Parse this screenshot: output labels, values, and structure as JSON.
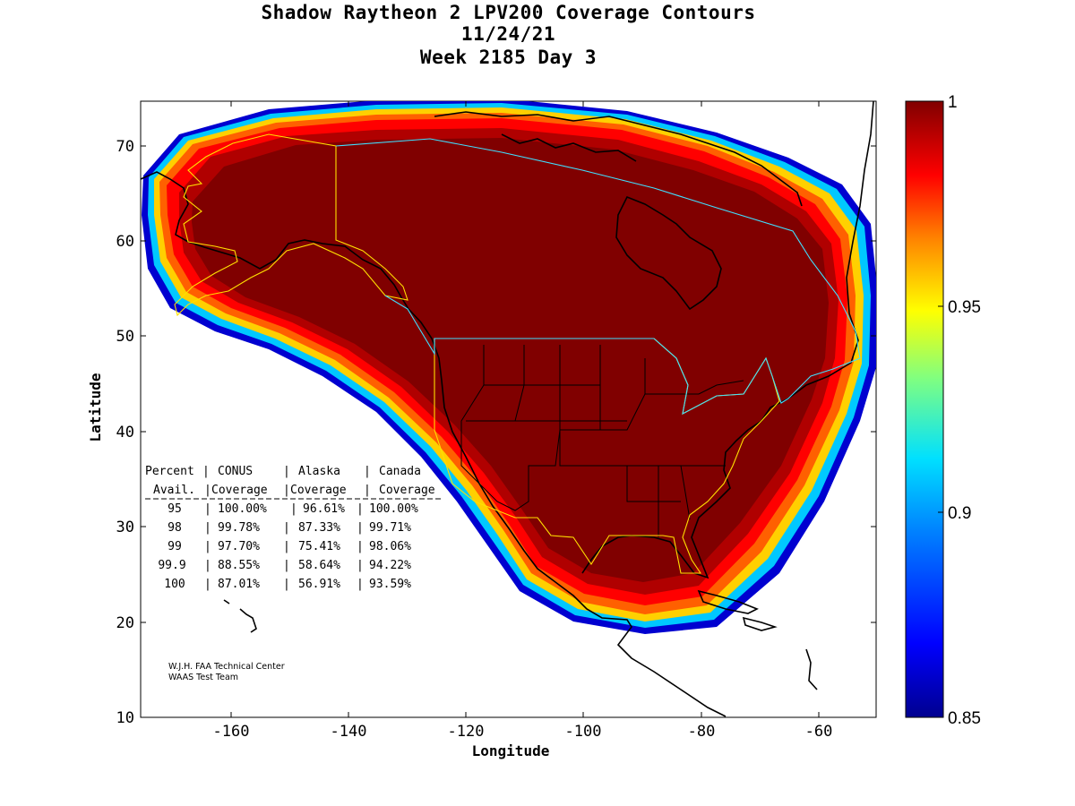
{
  "title_lines": [
    "Shadow Raytheon 2 LPV200 Coverage Contours",
    "11/24/21",
    "Week 2185 Day 3"
  ],
  "axes": {
    "xlabel": "Longitude",
    "ylabel": "Latitude",
    "xlim": [
      -175,
      -50
    ],
    "ylim": [
      10,
      75
    ],
    "xticks": [
      -160,
      -140,
      -120,
      -100,
      -80,
      -60
    ],
    "yticks": [
      10,
      20,
      30,
      40,
      50,
      60,
      70
    ]
  },
  "colorbar": {
    "range": [
      0.85,
      1
    ],
    "ticks": [
      {
        "value": 0.85,
        "label": "0.85"
      },
      {
        "value": 0.9,
        "label": "0.9"
      },
      {
        "value": 0.95,
        "label": "0.95"
      },
      {
        "value": 1,
        "label": "1"
      }
    ]
  },
  "table": {
    "header1": [
      "Percent",
      "CONUS",
      "Alaska",
      "Canada"
    ],
    "header2": [
      "Avail.",
      "Coverage",
      "Coverage",
      "Coverage"
    ],
    "rows": [
      [
        "95",
        "100.00%",
        "96.61%",
        "100.00%"
      ],
      [
        "98",
        "99.78%",
        "87.33%",
        "99.71%"
      ],
      [
        "99",
        "97.70%",
        "75.41%",
        "98.06%"
      ],
      [
        "99.9",
        "88.55%",
        "58.64%",
        "94.22%"
      ],
      [
        "100",
        "87.01%",
        "56.91%",
        "93.59%"
      ]
    ]
  },
  "credit": [
    "W.J.H. FAA Technical Center",
    "WAAS Test Team"
  ],
  "colors": {
    "max": "#800000",
    "min": "#00008f"
  }
}
